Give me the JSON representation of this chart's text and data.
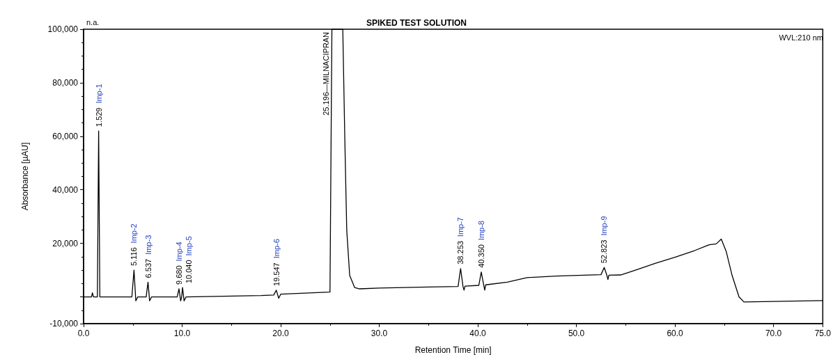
{
  "chart_data": {
    "type": "line",
    "title": "SPIKED TEST SOLUTION",
    "xlabel": "Retention Time [min]",
    "ylabel": "Absorbance [µAU]",
    "x": [
      0,
      0.8,
      0.9,
      1.0,
      1.4,
      1.529,
      1.65,
      4.9,
      5.116,
      5.3,
      5.5,
      6.35,
      6.537,
      6.7,
      6.9,
      9.5,
      9.68,
      9.85,
      9.95,
      10.04,
      10.2,
      10.4,
      18.0,
      19.3,
      19.547,
      19.8,
      20.0,
      25.0,
      25.196,
      26.3,
      26.5,
      26.7,
      27.0,
      27.5,
      28.0,
      30,
      35,
      38.0,
      38.253,
      38.5,
      38.6,
      38.7,
      40.1,
      40.35,
      40.6,
      40.7,
      40.8,
      43,
      45,
      48,
      52.5,
      52.823,
      53.1,
      53.2,
      53.3,
      54.5,
      56,
      58,
      60,
      62,
      63.5,
      64.2,
      64.7,
      65.2,
      65.8,
      66.5,
      67.0,
      70,
      75
    ],
    "series": [
      {
        "color": "#000000",
        "values": [
          0,
          0,
          1500,
          0,
          0,
          62000,
          0,
          0,
          10000,
          -1500,
          0,
          0,
          5500,
          -1500,
          0,
          0,
          3000,
          -1500,
          0,
          3500,
          -1500,
          0,
          500,
          700,
          2500,
          -500,
          1000,
          1800,
          100000,
          100000,
          60000,
          25000,
          8000,
          3500,
          3000,
          3300,
          3700,
          3900,
          10600,
          3800,
          2500,
          4000,
          4300,
          9300,
          4400,
          2500,
          4500,
          5500,
          7200,
          7800,
          8300,
          11000,
          8000,
          6500,
          8100,
          8200,
          10000,
          12500,
          14800,
          17300,
          19500,
          19800,
          21600,
          17000,
          8000,
          0,
          -1900,
          -1700,
          -1400
        ]
      }
    ],
    "xlim": [
      0,
      75
    ],
    "xticks": [
      {
        "value": 0,
        "label": "0.0"
      },
      {
        "value": 10,
        "label": "10.0"
      },
      {
        "value": 20,
        "label": "20.0"
      },
      {
        "value": 30,
        "label": "30.0"
      },
      {
        "value": 40,
        "label": "40.0"
      },
      {
        "value": 50,
        "label": "50.0"
      },
      {
        "value": 60,
        "label": "60.0"
      },
      {
        "value": 70,
        "label": "70.0"
      },
      {
        "value": 75,
        "label": "75.0"
      }
    ],
    "ylim": [
      -10000,
      100000
    ],
    "yticks": [
      {
        "value": -10000,
        "label": "-10,000"
      },
      {
        "value": 0,
        "label": null
      },
      {
        "value": 20000,
        "label": "20,000"
      },
      {
        "value": 40000,
        "label": "40,000"
      },
      {
        "value": 60000,
        "label": "60,000"
      },
      {
        "value": 80000,
        "label": "80,000"
      },
      {
        "value": 100000,
        "label": "100,000"
      }
    ],
    "grid": false,
    "marker": "none",
    "line_style": "solid",
    "annotations": [
      "n.a.",
      "WVL:210 nm",
      {
        "text": "1.529",
        "x": 1.529,
        "y": 62000
      },
      "Imp-1",
      {
        "text": "5.116",
        "x": 5.116,
        "y": 10000
      },
      "Imp-2",
      {
        "text": "6.537",
        "x": 6.537,
        "y": 5500
      },
      "Imp-3",
      {
        "text": "9.680",
        "x": 9.68,
        "y": 3000
      },
      "Imp-4",
      {
        "text": "10.040",
        "x": 10.04,
        "y": 3500
      },
      "Imp-5",
      {
        "text": "19.547",
        "x": 19.547,
        "y": 2500
      },
      "Imp-6",
      {
        "text": "25.196—MILNACIPRAN",
        "x": 25.196,
        "y": 100000
      },
      {
        "text": "38.253",
        "x": 38.253,
        "y": 10600
      },
      "Imp-7",
      {
        "text": "40.350",
        "x": 40.35,
        "y": 9300
      },
      "Imp-8",
      {
        "text": "52.823",
        "x": 52.823,
        "y": 11000
      },
      "Imp-9"
    ]
  }
}
